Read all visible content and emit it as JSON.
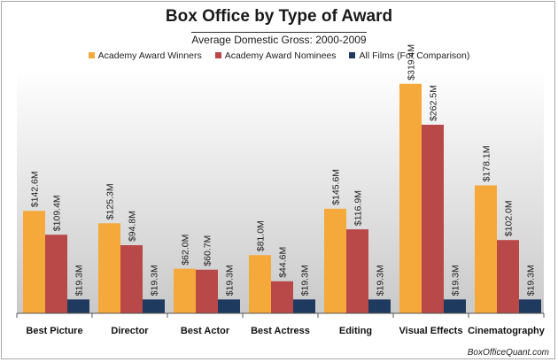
{
  "chart_data": {
    "type": "bar",
    "title": "Box Office by Type of Award",
    "subtitle": "Average Domestic Gross: 2000-2009",
    "categories": [
      "Best Picture",
      "Director",
      "Best Actor",
      "Best Actress",
      "Editing",
      "Visual Effects",
      "Cinematography"
    ],
    "series": [
      {
        "name": "Academy Award Winners",
        "color": "#f6a93b",
        "values": [
          142.6,
          125.3,
          62.0,
          81.0,
          145.6,
          319.4,
          178.1
        ],
        "labels": [
          "$142.6M",
          "$125.3M",
          "$62.0M",
          "$81.0M",
          "$145.6M",
          "$319.4M",
          "$178.1M"
        ]
      },
      {
        "name": "Academy Award Nominees",
        "color": "#b94848",
        "values": [
          109.4,
          94.8,
          60.7,
          44.6,
          116.9,
          262.5,
          102.0
        ],
        "labels": [
          "$109.4M",
          "$94.8M",
          "$60.7M",
          "$44.6M",
          "$116.9M",
          "$262.5M",
          "$102.0M"
        ]
      },
      {
        "name": "All Films (For Comparison)",
        "color": "#1f3a5f",
        "values": [
          19.3,
          19.3,
          19.3,
          19.3,
          19.3,
          19.3,
          19.3
        ],
        "labels": [
          "$19.3M",
          "$19.3M",
          "$19.3M",
          "$19.3M",
          "$19.3M",
          "$19.3M",
          "$19.3M"
        ]
      }
    ],
    "xlabel": "",
    "ylabel": "",
    "ylim": [
      0,
      340
    ],
    "grid": false,
    "legend_position": "top"
  },
  "credit": "BoxOfficeQuant.com"
}
